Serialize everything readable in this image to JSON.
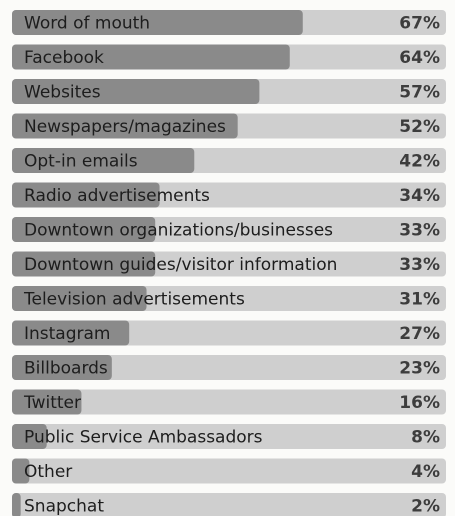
{
  "chart_data": {
    "type": "bar",
    "orientation": "horizontal",
    "categories": [
      "Word of mouth",
      "Facebook",
      "Websites",
      "Newspapers/magazines",
      "Opt-in emails",
      "Radio advertisements",
      "Downtown organizations/businesses",
      "Downtown guides/visitor information",
      "Television advertisements",
      "Instagram",
      "Billboards",
      "Twitter",
      "Public Service Ambassadors",
      "Other",
      "Snapchat"
    ],
    "values": [
      67,
      64,
      57,
      52,
      42,
      34,
      33,
      33,
      31,
      27,
      23,
      16,
      8,
      4,
      2
    ],
    "value_labels": [
      "67%",
      "64%",
      "57%",
      "52%",
      "42%",
      "34%",
      "33%",
      "33%",
      "31%",
      "27%",
      "23%",
      "16%",
      "8%",
      "4%",
      "2%"
    ],
    "xlim": [
      0,
      100
    ],
    "grid": false,
    "legend": "none",
    "colors": {
      "filled": "#8a8a8a",
      "track": "#cfcfcf",
      "label": "#1d1d1d",
      "value": "#3d3d3d"
    }
  }
}
